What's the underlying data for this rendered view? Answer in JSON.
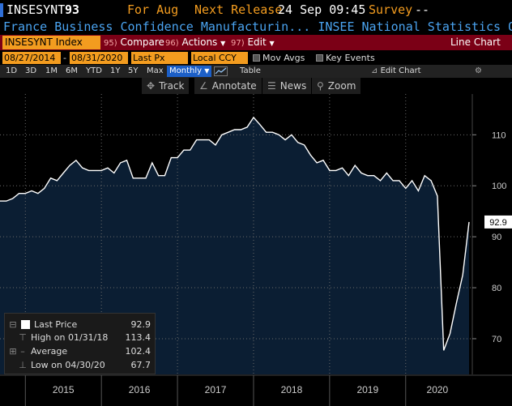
{
  "header": {
    "ticker": "INSESYNT",
    "last": "93",
    "period_label": "For Aug",
    "next_release_label": "Next Release",
    "next_release_value": "24 Sep 09:45",
    "survey_label": "Survey",
    "survey_value": "--"
  },
  "subtitle": "France Business Confidence Manufacturin... INSEE National Statistics Offi...",
  "function_bar": {
    "security": "INSESYNT Index",
    "compare": {
      "num": "95)",
      "label": "Compare"
    },
    "actions": {
      "num": "96)",
      "label": "Actions"
    },
    "edit": {
      "num": "97)",
      "label": "Edit"
    },
    "view_name": "Line Chart"
  },
  "settings": {
    "start_date": "08/27/2014",
    "sep": "-",
    "end_date": "08/31/2020",
    "field": "Last Px",
    "currency": "Local CCY",
    "mov_avgs": "Mov Avgs",
    "key_events": "Key Events"
  },
  "periods": {
    "items": [
      "1D",
      "3D",
      "1M",
      "6M",
      "YTD",
      "1Y",
      "5Y",
      "Max"
    ],
    "selected": "Monthly",
    "table": "Table",
    "edit_chart": "Edit Chart"
  },
  "toolbar": {
    "track": "Track",
    "annotate": "Annotate",
    "news": "News",
    "zoom": "Zoom"
  },
  "legend": {
    "last_price_label": "Last Price",
    "last_price_value": "92.9",
    "high_label": "High on 01/31/18",
    "high_value": "113.4",
    "average_label": "Average",
    "average_value": "102.4",
    "low_label": "Low on 04/30/20",
    "low_value": "67.7"
  },
  "colors": {
    "orange": "#f39c1f",
    "blue_text": "#4aa3f0",
    "bar_red": "#7b0016",
    "area_fill": "#0b1e33"
  },
  "chart_data": {
    "type": "area",
    "title": "",
    "xlabel": "",
    "ylabel": "",
    "x_tick_labels": [
      "2015",
      "2016",
      "2017",
      "2018",
      "2019",
      "2020"
    ],
    "y_ticks": [
      70,
      80,
      90,
      100,
      110
    ],
    "ylim": [
      63,
      118
    ],
    "last_value_tag": "92.9",
    "grid": true,
    "series": [
      {
        "values": [
          97,
          97,
          97.5,
          98.5,
          98.5,
          99,
          98.5,
          99.5,
          101.5,
          101,
          102.5,
          104,
          105,
          103.5,
          103,
          103,
          103,
          103.5,
          102.5,
          104.5,
          105,
          101.5,
          101.5,
          101.5,
          104.5,
          102,
          102,
          105.5,
          105.5,
          107,
          107,
          109,
          109,
          109,
          108,
          110,
          110.5,
          111,
          111,
          111.5,
          113.4,
          112,
          110.5,
          110.5,
          110,
          109,
          110,
          108.5,
          108,
          106,
          104.5,
          105,
          103,
          103,
          103.5,
          102,
          104,
          102.5,
          102,
          102,
          101,
          102.5,
          101,
          101,
          99.5,
          101,
          99,
          102,
          101,
          98,
          67.7,
          71,
          77,
          82.5,
          92.9
        ]
      }
    ]
  }
}
